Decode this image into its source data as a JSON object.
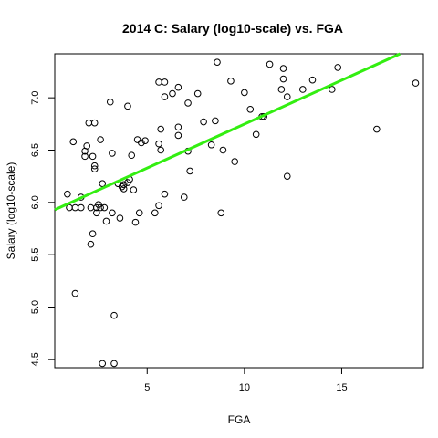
{
  "chart_data": {
    "type": "scatter",
    "title": "2014 C: Salary (log10-scale) vs. FGA",
    "xlabel": "FGA",
    "ylabel": "Salary (log10-scale)",
    "xlim": [
      0.25,
      19.2
    ],
    "ylim": [
      4.42,
      7.42
    ],
    "x_ticks": [
      5,
      10,
      15
    ],
    "y_ticks": [
      4.5,
      5.0,
      5.5,
      6.0,
      6.5,
      7.0
    ],
    "x_tick_labels": [
      "5",
      "10",
      "15"
    ],
    "y_tick_labels": [
      "4.5",
      "5.0",
      "5.5",
      "6.0",
      "6.5",
      "7.0"
    ],
    "grid": false,
    "points": [
      {
        "x": 0.9,
        "y": 6.08
      },
      {
        "x": 1.0,
        "y": 5.95
      },
      {
        "x": 1.2,
        "y": 6.58
      },
      {
        "x": 1.3,
        "y": 5.13
      },
      {
        "x": 1.3,
        "y": 5.95
      },
      {
        "x": 1.6,
        "y": 6.05
      },
      {
        "x": 1.6,
        "y": 5.95
      },
      {
        "x": 1.8,
        "y": 6.44
      },
      {
        "x": 1.8,
        "y": 6.49
      },
      {
        "x": 1.9,
        "y": 6.54
      },
      {
        "x": 2.0,
        "y": 6.76
      },
      {
        "x": 2.1,
        "y": 5.95
      },
      {
        "x": 2.1,
        "y": 5.6
      },
      {
        "x": 2.2,
        "y": 6.44
      },
      {
        "x": 2.2,
        "y": 5.7
      },
      {
        "x": 2.3,
        "y": 6.76
      },
      {
        "x": 2.3,
        "y": 6.35
      },
      {
        "x": 2.3,
        "y": 6.32
      },
      {
        "x": 2.4,
        "y": 5.9
      },
      {
        "x": 2.4,
        "y": 5.95
      },
      {
        "x": 2.5,
        "y": 5.98
      },
      {
        "x": 2.6,
        "y": 5.95
      },
      {
        "x": 2.6,
        "y": 6.6
      },
      {
        "x": 2.7,
        "y": 6.18
      },
      {
        "x": 2.7,
        "y": 4.46
      },
      {
        "x": 2.8,
        "y": 5.95
      },
      {
        "x": 2.9,
        "y": 5.82
      },
      {
        "x": 3.1,
        "y": 6.96
      },
      {
        "x": 3.2,
        "y": 6.47
      },
      {
        "x": 3.2,
        "y": 5.9
      },
      {
        "x": 3.3,
        "y": 4.92
      },
      {
        "x": 3.3,
        "y": 4.46
      },
      {
        "x": 3.5,
        "y": 6.18
      },
      {
        "x": 3.6,
        "y": 5.85
      },
      {
        "x": 3.7,
        "y": 6.15
      },
      {
        "x": 3.8,
        "y": 6.13
      },
      {
        "x": 3.8,
        "y": 6.17
      },
      {
        "x": 4.0,
        "y": 6.92
      },
      {
        "x": 4.0,
        "y": 6.19
      },
      {
        "x": 4.1,
        "y": 6.22
      },
      {
        "x": 4.2,
        "y": 6.45
      },
      {
        "x": 4.3,
        "y": 6.12
      },
      {
        "x": 4.4,
        "y": 5.81
      },
      {
        "x": 4.5,
        "y": 6.6
      },
      {
        "x": 4.6,
        "y": 5.9
      },
      {
        "x": 4.7,
        "y": 6.57
      },
      {
        "x": 4.9,
        "y": 6.59
      },
      {
        "x": 5.4,
        "y": 5.9
      },
      {
        "x": 5.6,
        "y": 7.15
      },
      {
        "x": 5.6,
        "y": 6.56
      },
      {
        "x": 5.6,
        "y": 5.97
      },
      {
        "x": 5.7,
        "y": 6.5
      },
      {
        "x": 5.7,
        "y": 6.7
      },
      {
        "x": 5.9,
        "y": 7.15
      },
      {
        "x": 5.9,
        "y": 7.01
      },
      {
        "x": 5.9,
        "y": 6.08
      },
      {
        "x": 6.3,
        "y": 7.04
      },
      {
        "x": 6.6,
        "y": 7.1
      },
      {
        "x": 6.6,
        "y": 6.72
      },
      {
        "x": 6.6,
        "y": 6.64
      },
      {
        "x": 6.9,
        "y": 6.05
      },
      {
        "x": 7.1,
        "y": 6.95
      },
      {
        "x": 7.1,
        "y": 6.49
      },
      {
        "x": 7.2,
        "y": 6.3
      },
      {
        "x": 7.6,
        "y": 7.04
      },
      {
        "x": 7.9,
        "y": 6.77
      },
      {
        "x": 8.3,
        "y": 6.55
      },
      {
        "x": 8.5,
        "y": 6.78
      },
      {
        "x": 8.6,
        "y": 7.34
      },
      {
        "x": 8.8,
        "y": 5.9
      },
      {
        "x": 8.9,
        "y": 6.5
      },
      {
        "x": 9.3,
        "y": 7.16
      },
      {
        "x": 9.5,
        "y": 6.39
      },
      {
        "x": 10.0,
        "y": 7.05
      },
      {
        "x": 10.3,
        "y": 6.89
      },
      {
        "x": 10.6,
        "y": 6.65
      },
      {
        "x": 10.9,
        "y": 6.82
      },
      {
        "x": 11.0,
        "y": 6.82
      },
      {
        "x": 11.3,
        "y": 7.32
      },
      {
        "x": 11.9,
        "y": 7.08
      },
      {
        "x": 12.0,
        "y": 7.28
      },
      {
        "x": 12.0,
        "y": 7.18
      },
      {
        "x": 12.2,
        "y": 7.01
      },
      {
        "x": 12.2,
        "y": 6.25
      },
      {
        "x": 13.0,
        "y": 7.08
      },
      {
        "x": 13.5,
        "y": 7.17
      },
      {
        "x": 14.5,
        "y": 7.08
      },
      {
        "x": 14.8,
        "y": 7.29
      },
      {
        "x": 16.8,
        "y": 6.7
      },
      {
        "x": 18.8,
        "y": 7.14
      }
    ],
    "fit_line": {
      "x1": 0.25,
      "y1": 5.93,
      "x2": 18.0,
      "y2": 7.42,
      "color": "#33ee11"
    },
    "point_color": "#000000"
  }
}
